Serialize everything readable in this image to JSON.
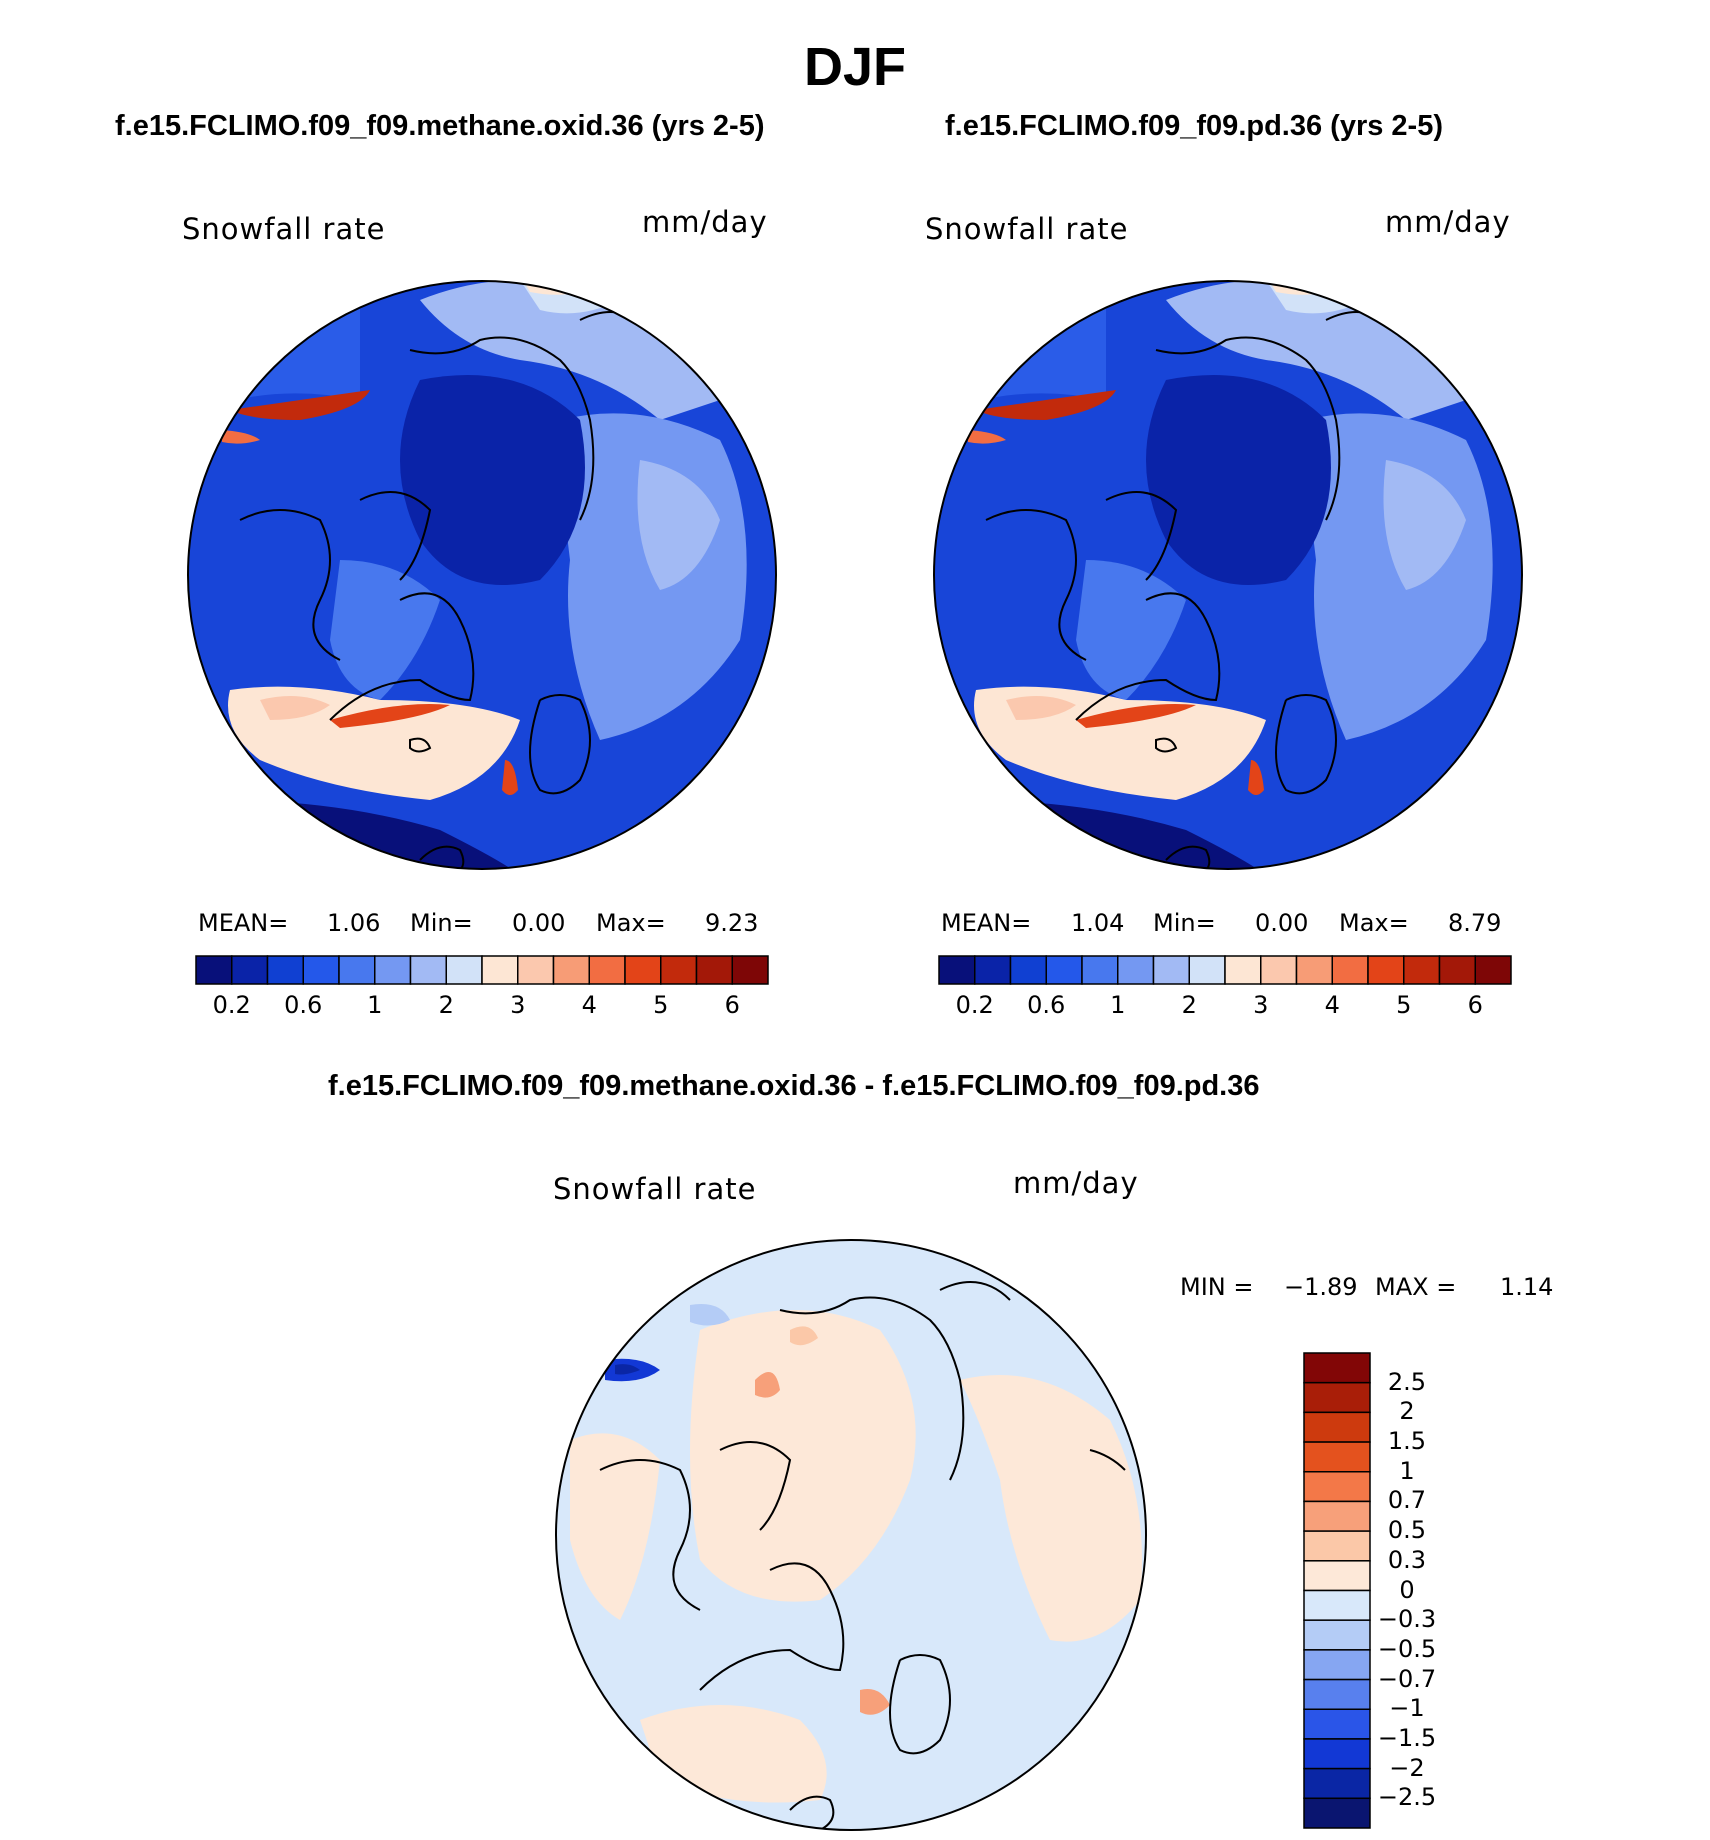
{
  "title": "DJF",
  "colors": {
    "abs_scale": [
      "#08107a",
      "#0a23a8",
      "#1040d2",
      "#2458ea",
      "#4878ee",
      "#7498f2",
      "#a2baf4",
      "#d2e2f8",
      "#fde6d4",
      "#fbc8ae",
      "#f79c76",
      "#f26d42",
      "#e34418",
      "#c22a0c",
      "#a31808",
      "#7e0606"
    ],
    "diff_scale": [
      "#0a1570",
      "#0a26a5",
      "#1238d5",
      "#2a55e8",
      "#5880ee",
      "#86a6f2",
      "#b4ccf6",
      "#d8e8fa",
      "#fde8d8",
      "#fbc8a8",
      "#f7a07a",
      "#f37848",
      "#e4521e",
      "#cd3a0e",
      "#a91e08",
      "#820606"
    ],
    "coast": "#000000"
  },
  "chart_data": [
    {
      "type": "heatmap",
      "projection": "north polar stereographic",
      "title": "f.e15.FCLIMO.f09_f09.methane.oxid.36 (yrs 2-5)",
      "variable": "Snowfall rate",
      "units": "mm/day",
      "stats": {
        "mean_label": "MEAN=",
        "mean": "1.06",
        "min_label": "Min=",
        "min": "0.00",
        "max_label": "Max=",
        "max": "9.23"
      },
      "colorbar": {
        "orientation": "horizontal",
        "tick_labels": [
          "0.2",
          "0.6",
          "1",
          "2",
          "3",
          "4",
          "5",
          "6"
        ],
        "levels": [
          0.1,
          0.2,
          0.4,
          0.6,
          0.8,
          1,
          1.5,
          2,
          2.5,
          3,
          3.5,
          4,
          4.5,
          5,
          5.5,
          6
        ]
      }
    },
    {
      "type": "heatmap",
      "projection": "north polar stereographic",
      "title": "f.e15.FCLIMO.f09_f09.pd.36 (yrs 2-5)",
      "variable": "Snowfall rate",
      "units": "mm/day",
      "stats": {
        "mean_label": "MEAN=",
        "mean": "1.04",
        "min_label": "Min=",
        "min": "0.00",
        "max_label": "Max=",
        "max": "8.79"
      },
      "colorbar": {
        "orientation": "horizontal",
        "tick_labels": [
          "0.2",
          "0.6",
          "1",
          "2",
          "3",
          "4",
          "5",
          "6"
        ],
        "levels": [
          0.1,
          0.2,
          0.4,
          0.6,
          0.8,
          1,
          1.5,
          2,
          2.5,
          3,
          3.5,
          4,
          4.5,
          5,
          5.5,
          6
        ]
      }
    },
    {
      "type": "heatmap",
      "projection": "north polar stereographic",
      "title": "f.e15.FCLIMO.f09_f09.methane.oxid.36 - f.e15.FCLIMO.f09_f09.pd.36",
      "variable": "Snowfall rate",
      "units": "mm/day",
      "stats": {
        "min_label": "MIN =",
        "min": "−1.89",
        "max_label": "MAX =",
        "max": "1.14"
      },
      "colorbar": {
        "orientation": "vertical",
        "tick_labels": [
          "2.5",
          "2",
          "1.5",
          "1",
          "0.7",
          "0.5",
          "0.3",
          "0",
          "−0.3",
          "−0.5",
          "−0.7",
          "−1",
          "−1.5",
          "−2",
          "−2.5"
        ]
      }
    }
  ]
}
